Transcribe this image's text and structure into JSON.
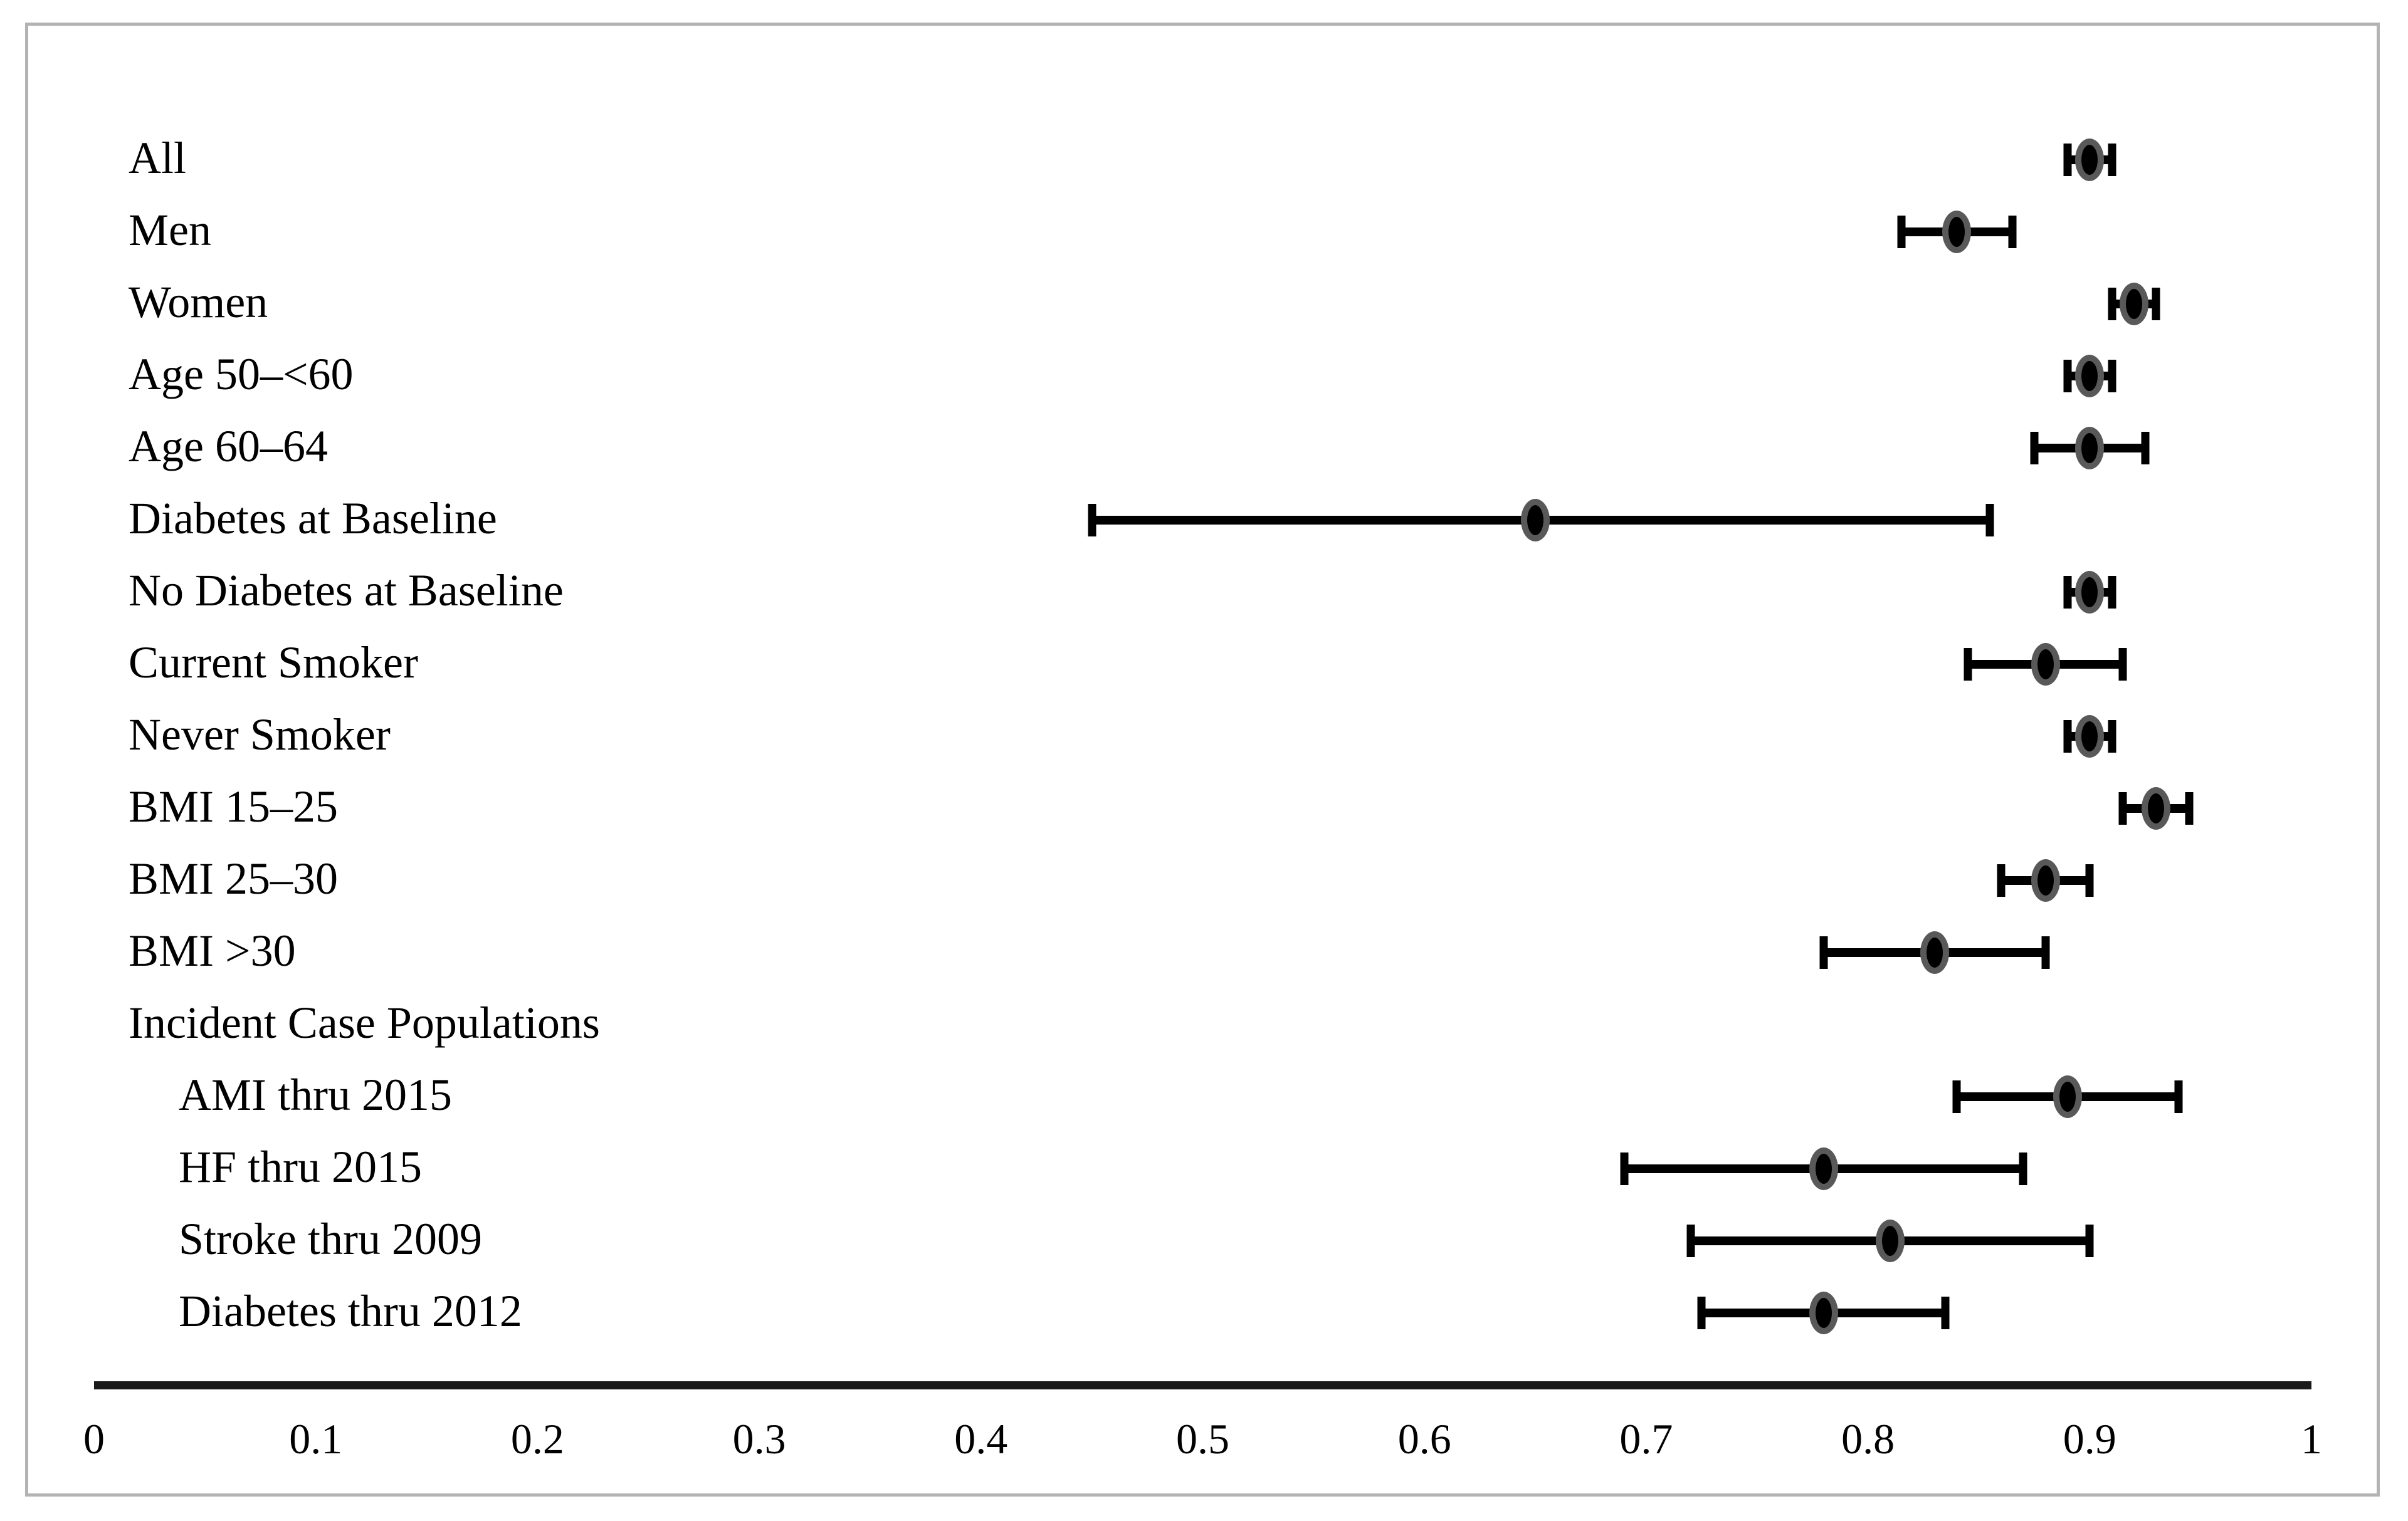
{
  "figure": {
    "background": "#ffffff",
    "frame_color": "#b3b3b3",
    "marker_fill": "#000000",
    "marker_outline": "#595959",
    "bar_color": "#000000",
    "axis_color": "#1a1a1a"
  },
  "chart_data": {
    "type": "forest",
    "title": "",
    "xlabel": "",
    "ylabel": "",
    "xlim": [
      0,
      1
    ],
    "grid": false,
    "x_ticks": [
      {
        "value": 0,
        "label": "0"
      },
      {
        "value": 0.1,
        "label": "0.1"
      },
      {
        "value": 0.2,
        "label": "0.2"
      },
      {
        "value": 0.3,
        "label": "0.3"
      },
      {
        "value": 0.4,
        "label": "0.4"
      },
      {
        "value": 0.5,
        "label": "0.5"
      },
      {
        "value": 0.6,
        "label": "0.6"
      },
      {
        "value": 0.7,
        "label": "0.7"
      },
      {
        "value": 0.8,
        "label": "0.8"
      },
      {
        "value": 0.9,
        "label": "0.9"
      },
      {
        "value": 1,
        "label": "1"
      }
    ],
    "rows": [
      {
        "label": "All",
        "indent": 0,
        "estimate": 0.9,
        "ci_low": 0.89,
        "ci_high": 0.91
      },
      {
        "label": "Men",
        "indent": 0,
        "estimate": 0.84,
        "ci_low": 0.815,
        "ci_high": 0.865
      },
      {
        "label": "Women",
        "indent": 0,
        "estimate": 0.92,
        "ci_low": 0.91,
        "ci_high": 0.93
      },
      {
        "label": "Age 50–<60",
        "indent": 0,
        "estimate": 0.9,
        "ci_low": 0.89,
        "ci_high": 0.91
      },
      {
        "label": "Age 60–64",
        "indent": 0,
        "estimate": 0.9,
        "ci_low": 0.875,
        "ci_high": 0.925
      },
      {
        "label": "Diabetes at Baseline",
        "indent": 0,
        "estimate": 0.65,
        "ci_low": 0.45,
        "ci_high": 0.855
      },
      {
        "label": "No Diabetes at Baseline",
        "indent": 0,
        "estimate": 0.9,
        "ci_low": 0.89,
        "ci_high": 0.91
      },
      {
        "label": "Current Smoker",
        "indent": 0,
        "estimate": 0.88,
        "ci_low": 0.845,
        "ci_high": 0.915
      },
      {
        "label": "Never Smoker",
        "indent": 0,
        "estimate": 0.9,
        "ci_low": 0.89,
        "ci_high": 0.91
      },
      {
        "label": "BMI 15–25",
        "indent": 0,
        "estimate": 0.93,
        "ci_low": 0.915,
        "ci_high": 0.945
      },
      {
        "label": "BMI 25–30",
        "indent": 0,
        "estimate": 0.88,
        "ci_low": 0.86,
        "ci_high": 0.9
      },
      {
        "label": "BMI >30",
        "indent": 0,
        "estimate": 0.83,
        "ci_low": 0.78,
        "ci_high": 0.88
      },
      {
        "label": "Incident Case Populations",
        "indent": 0,
        "estimate": null,
        "ci_low": null,
        "ci_high": null
      },
      {
        "label": "AMI thru 2015",
        "indent": 1,
        "estimate": 0.89,
        "ci_low": 0.84,
        "ci_high": 0.94
      },
      {
        "label": "HF thru 2015",
        "indent": 1,
        "estimate": 0.78,
        "ci_low": 0.69,
        "ci_high": 0.87
      },
      {
        "label": "Stroke thru 2009",
        "indent": 1,
        "estimate": 0.81,
        "ci_low": 0.72,
        "ci_high": 0.9
      },
      {
        "label": "Diabetes thru 2012",
        "indent": 1,
        "estimate": 0.78,
        "ci_low": 0.725,
        "ci_high": 0.835
      }
    ]
  }
}
